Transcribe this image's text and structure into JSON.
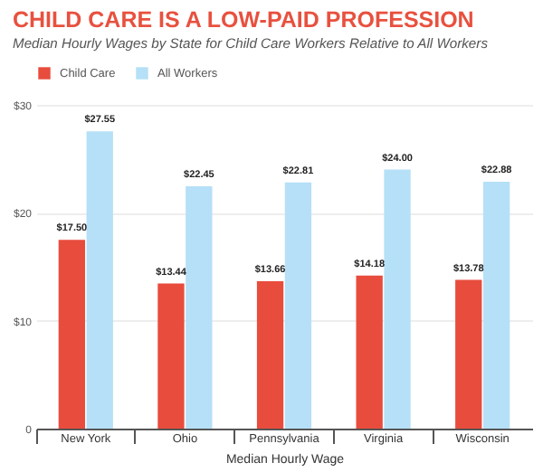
{
  "chart_data": {
    "type": "bar",
    "title": "CHILD CARE IS A LOW-PAID PROFESSION",
    "subtitle": "Median Hourly Wages by State for Child Care Workers Relative to All Workers",
    "xlabel": "Median Hourly Wage",
    "categories": [
      "New York",
      "Ohio",
      "Pennsylvania",
      "Virginia",
      "Wisconsin"
    ],
    "series": [
      {
        "name": "Child Care",
        "color": "#e84c3d",
        "values": [
          17.5,
          13.44,
          13.66,
          14.18,
          13.78
        ],
        "value_labels": [
          "$17.50",
          "$13.44",
          "$13.66",
          "$14.18",
          "$13.78"
        ]
      },
      {
        "name": "All Workers",
        "color": "#b5e0f7",
        "values": [
          27.55,
          22.45,
          22.81,
          24.0,
          22.88
        ],
        "value_labels": [
          "$27.55",
          "$22.45",
          "$22.81",
          "$24.00",
          "$22.88"
        ]
      }
    ],
    "ylim": [
      0,
      30
    ],
    "yticks": [
      0,
      {
        "value": 10,
        "label": "$10"
      },
      {
        "value": 20,
        "label": "$20"
      },
      {
        "value": 30,
        "label": "$30"
      }
    ],
    "grid": "y",
    "legend": "top left"
  }
}
